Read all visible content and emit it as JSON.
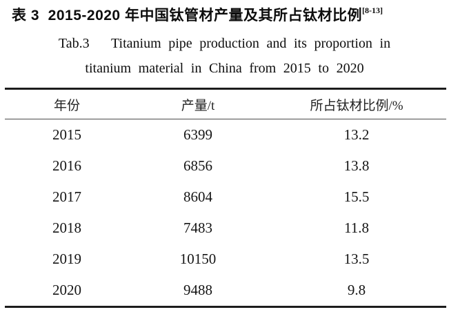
{
  "title": {
    "zh": "表 3  2015-2020 年中国钛管材产量及其所占钛材比例",
    "ref": "[8-13]"
  },
  "subtitle": {
    "line1": "Tab.3   Titanium pipe production and its proportion in",
    "line2": "titanium material in China from 2015 to 2020"
  },
  "table": {
    "headers": [
      "年份",
      "产量/t",
      "所占钛材比例/%"
    ],
    "rows": [
      [
        "2015",
        "6399",
        "13.2"
      ],
      [
        "2016",
        "6856",
        "13.8"
      ],
      [
        "2017",
        "8604",
        "15.5"
      ],
      [
        "2018",
        "7483",
        "11.8"
      ],
      [
        "2019",
        "10150",
        "13.5"
      ],
      [
        "2020",
        "9488",
        "9.8"
      ]
    ]
  }
}
